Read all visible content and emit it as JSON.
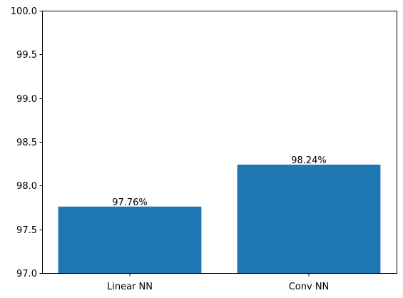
{
  "chart_data": {
    "type": "bar",
    "title": "",
    "xlabel": "",
    "ylabel": "",
    "categories": [
      "Linear NN",
      "Conv NN"
    ],
    "values": [
      97.76,
      98.24
    ],
    "data_labels": [
      "97.76%",
      "98.24%"
    ],
    "ylim": [
      97.0,
      100.0
    ],
    "yticks": [
      97.0,
      97.5,
      98.0,
      98.5,
      99.0,
      99.5,
      100.0
    ],
    "ytick_labels": [
      "97.0",
      "97.5",
      "98.0",
      "98.5",
      "99.0",
      "99.5",
      "100.0"
    ],
    "grid": false,
    "bar_color": "#1f77b4"
  }
}
